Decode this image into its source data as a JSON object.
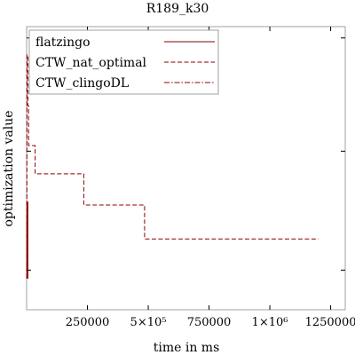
{
  "chart_data": {
    "type": "line",
    "title": "R189_k30",
    "xlabel": "time in ms",
    "ylabel": "optimization value",
    "xlim": [
      0,
      1310000
    ],
    "ylim": [
      0,
      1.0
    ],
    "x_ticks": [
      {
        "value": 250000,
        "label": "250000"
      },
      {
        "value": 500000,
        "label": "5×10⁵"
      },
      {
        "value": 750000,
        "label": "750000"
      },
      {
        "value": 1000000,
        "label": "1×10⁶"
      },
      {
        "value": 1250000,
        "label": "1250000"
      }
    ],
    "y_tick_values": [
      0.14,
      0.56,
      0.96
    ],
    "grid": false,
    "legend_position": "top-left",
    "series": [
      {
        "name": "flatzingo",
        "style": "solid",
        "color": "#8b0000",
        "x": [
          1000,
          1000,
          5000,
          5000
        ],
        "y": [
          0.11,
          0.38,
          0.38,
          0.11
        ]
      },
      {
        "name": "CTW_nat_optimal",
        "style": "dashed",
        "color": "#8b0000",
        "x": [
          1000,
          1000,
          5000,
          5000,
          8000,
          8000,
          35000,
          35000,
          235000,
          235000,
          485000,
          485000,
          1200000
        ],
        "y": [
          0.11,
          0.9,
          0.9,
          0.72,
          0.72,
          0.58,
          0.58,
          0.48,
          0.48,
          0.37,
          0.37,
          0.25,
          0.25
        ]
      },
      {
        "name": "CTW_clingoDL",
        "style": "dashdot",
        "color": "#8b0000",
        "x": [
          1000,
          1000,
          3000,
          3000
        ],
        "y": [
          0.11,
          0.33,
          0.33,
          0.11
        ]
      }
    ]
  }
}
